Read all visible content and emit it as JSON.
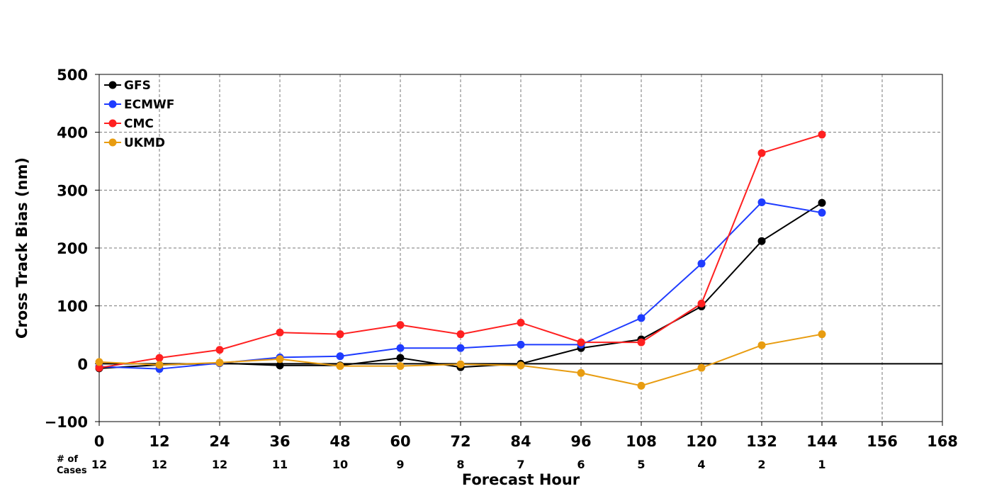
{
  "chart_data": {
    "type": "line",
    "xlabel": "Forecast Hour",
    "ylabel": "Cross Track Bias (nm)",
    "xlim": [
      0,
      168
    ],
    "ylim": [
      -100,
      500
    ],
    "x_ticks": [
      0,
      12,
      24,
      36,
      48,
      60,
      72,
      84,
      96,
      108,
      120,
      132,
      144,
      156,
      168
    ],
    "y_ticks": [
      -100,
      0,
      100,
      200,
      300,
      400,
      500
    ],
    "grid": true,
    "legend_position": "top-left",
    "zero_line": true,
    "cases_header_line1": "# of",
    "cases_header_line2": "Cases",
    "cases": [
      {
        "x": 0,
        "label": "12"
      },
      {
        "x": 12,
        "label": "12"
      },
      {
        "x": 24,
        "label": "12"
      },
      {
        "x": 36,
        "label": "11"
      },
      {
        "x": 48,
        "label": "10"
      },
      {
        "x": 60,
        "label": "9"
      },
      {
        "x": 72,
        "label": "8"
      },
      {
        "x": 84,
        "label": "7"
      },
      {
        "x": 96,
        "label": "6"
      },
      {
        "x": 108,
        "label": "5"
      },
      {
        "x": 120,
        "label": "4"
      },
      {
        "x": 132,
        "label": "2"
      },
      {
        "x": 144,
        "label": "1"
      }
    ],
    "x": [
      0,
      12,
      24,
      36,
      48,
      60,
      72,
      84,
      96,
      108,
      120,
      132,
      144
    ],
    "series": [
      {
        "name": "GFS",
        "color": "#000000",
        "values": [
          -8,
          -2,
          1,
          -3,
          -3,
          10,
          -6,
          0,
          27,
          42,
          99,
          212,
          278
        ]
      },
      {
        "name": "ECMWF",
        "color": "#1f3cff",
        "values": [
          -5,
          -9,
          1,
          11,
          13,
          27,
          27,
          33,
          33,
          79,
          173,
          279,
          261
        ]
      },
      {
        "name": "CMC",
        "color": "#ff2020",
        "values": [
          -7,
          10,
          24,
          54,
          51,
          67,
          51,
          71,
          37,
          37,
          104,
          364,
          396
        ]
      },
      {
        "name": "UKMD",
        "color": "#e89c10",
        "values": [
          3,
          -2,
          2,
          8,
          -4,
          -4,
          -1,
          -3,
          -16,
          -38,
          -7,
          32,
          51
        ]
      }
    ]
  }
}
